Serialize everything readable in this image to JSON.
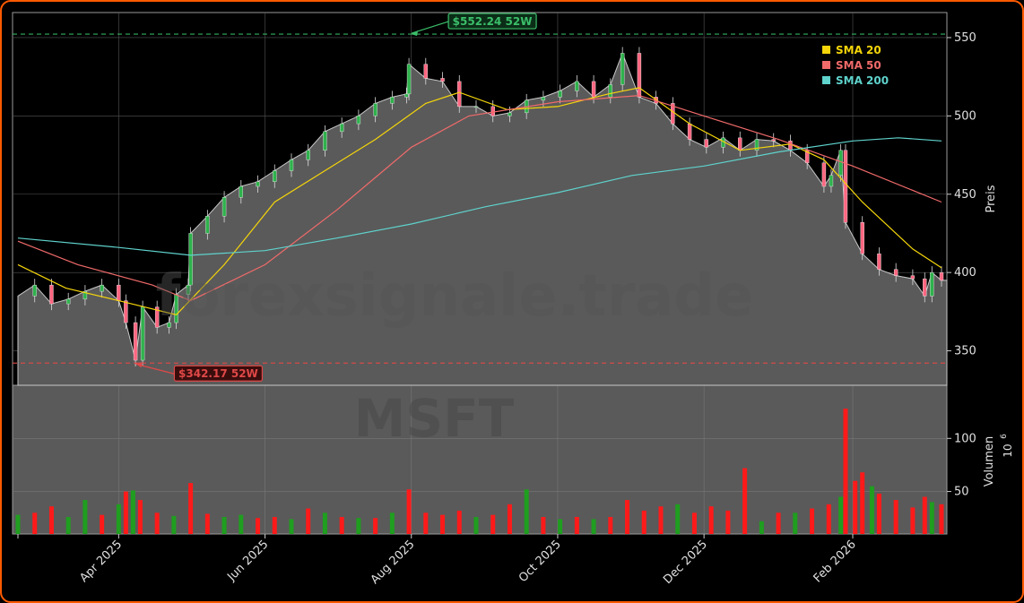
{
  "chart_data": {
    "type": "candlestick",
    "watermark": "forexsignale.trade",
    "watermark_symbol": "MSFT",
    "x_axis": {
      "type": "date",
      "range": [
        "2025-02-18",
        "2026-03-10"
      ],
      "tick_labels": [
        "Apr 2025",
        "Jun 2025",
        "Aug 2025",
        "Oct 2025",
        "Dec 2025",
        "Feb 2026"
      ],
      "tick_dates": [
        "2025-04-01",
        "2025-06-01",
        "2025-08-01",
        "2025-10-01",
        "2025-12-01",
        "2026-02-01"
      ]
    },
    "price_panel": {
      "ylabel": "Preis",
      "ylim": [
        328,
        566
      ],
      "yticks": [
        350,
        400,
        450,
        500,
        550
      ],
      "grid": true,
      "legend_position": "top-right",
      "legend": [
        {
          "name": "SMA 20",
          "color": "#f5d50a"
        },
        {
          "name": "SMA 50",
          "color": "#f06a6a"
        },
        {
          "name": "SMA 200",
          "color": "#5fd2cc"
        }
      ],
      "close_series": [
        [
          "2025-02-18",
          385
        ],
        [
          "2025-02-25",
          392
        ],
        [
          "2025-03-04",
          380
        ],
        [
          "2025-03-11",
          383
        ],
        [
          "2025-03-18",
          388
        ],
        [
          "2025-03-25",
          392
        ],
        [
          "2025-04-01",
          382
        ],
        [
          "2025-04-04",
          368
        ],
        [
          "2025-04-08",
          344
        ],
        [
          "2025-04-11",
          378
        ],
        [
          "2025-04-17",
          365
        ],
        [
          "2025-04-22",
          368
        ],
        [
          "2025-04-25",
          386
        ],
        [
          "2025-04-30",
          392
        ],
        [
          "2025-05-01",
          425
        ],
        [
          "2025-05-08",
          436
        ],
        [
          "2025-05-15",
          448
        ],
        [
          "2025-05-22",
          455
        ],
        [
          "2025-05-29",
          458
        ],
        [
          "2025-06-05",
          465
        ],
        [
          "2025-06-12",
          472
        ],
        [
          "2025-06-19",
          478
        ],
        [
          "2025-06-26",
          490
        ],
        [
          "2025-07-03",
          495
        ],
        [
          "2025-07-10",
          500
        ],
        [
          "2025-07-17",
          508
        ],
        [
          "2025-07-24",
          512
        ],
        [
          "2025-07-30",
          514
        ],
        [
          "2025-07-31",
          533
        ],
        [
          "2025-08-07",
          524
        ],
        [
          "2025-08-14",
          522
        ],
        [
          "2025-08-21",
          506
        ],
        [
          "2025-08-28",
          506
        ],
        [
          "2025-09-04",
          500
        ],
        [
          "2025-09-11",
          502
        ],
        [
          "2025-09-18",
          510
        ],
        [
          "2025-09-25",
          512
        ],
        [
          "2025-10-02",
          516
        ],
        [
          "2025-10-09",
          522
        ],
        [
          "2025-10-16",
          512
        ],
        [
          "2025-10-23",
          520
        ],
        [
          "2025-10-28",
          540
        ],
        [
          "2025-11-04",
          512
        ],
        [
          "2025-11-11",
          508
        ],
        [
          "2025-11-18",
          495
        ],
        [
          "2025-11-25",
          485
        ],
        [
          "2025-12-02",
          480
        ],
        [
          "2025-12-09",
          486
        ],
        [
          "2025-12-16",
          478
        ],
        [
          "2025-12-23",
          485
        ],
        [
          "2025-12-30",
          484
        ],
        [
          "2026-01-06",
          478
        ],
        [
          "2026-01-13",
          470
        ],
        [
          "2026-01-20",
          455
        ],
        [
          "2026-01-23",
          462
        ],
        [
          "2026-01-27",
          478
        ],
        [
          "2026-01-29",
          432
        ],
        [
          "2026-02-05",
          412
        ],
        [
          "2026-02-12",
          402
        ],
        [
          "2026-02-19",
          398
        ],
        [
          "2026-02-26",
          396
        ],
        [
          "2026-03-03",
          385
        ],
        [
          "2026-03-06",
          400
        ],
        [
          "2026-03-10",
          395
        ]
      ],
      "sma20": [
        [
          "2025-02-18",
          405
        ],
        [
          "2025-03-10",
          390
        ],
        [
          "2025-04-01",
          382
        ],
        [
          "2025-04-25",
          373
        ],
        [
          "2025-05-15",
          405
        ],
        [
          "2025-06-05",
          445
        ],
        [
          "2025-06-26",
          465
        ],
        [
          "2025-07-17",
          485
        ],
        [
          "2025-08-07",
          508
        ],
        [
          "2025-08-21",
          515
        ],
        [
          "2025-09-10",
          504
        ],
        [
          "2025-10-01",
          506
        ],
        [
          "2025-10-22",
          514
        ],
        [
          "2025-11-04",
          518
        ],
        [
          "2025-11-25",
          495
        ],
        [
          "2025-12-16",
          478
        ],
        [
          "2026-01-06",
          482
        ],
        [
          "2026-01-20",
          472
        ],
        [
          "2026-02-05",
          445
        ],
        [
          "2026-02-26",
          415
        ],
        [
          "2026-03-10",
          403
        ]
      ],
      "sma50": [
        [
          "2025-02-18",
          420
        ],
        [
          "2025-03-15",
          405
        ],
        [
          "2025-04-15",
          392
        ],
        [
          "2025-05-01",
          382
        ],
        [
          "2025-06-01",
          405
        ],
        [
          "2025-07-01",
          440
        ],
        [
          "2025-08-01",
          480
        ],
        [
          "2025-08-25",
          500
        ],
        [
          "2025-10-01",
          509
        ],
        [
          "2025-11-04",
          513
        ],
        [
          "2025-12-01",
          500
        ],
        [
          "2026-01-01",
          485
        ],
        [
          "2026-02-01",
          468
        ],
        [
          "2026-03-10",
          445
        ]
      ],
      "sma200": [
        [
          "2025-02-18",
          422
        ],
        [
          "2025-04-01",
          416
        ],
        [
          "2025-05-01",
          411
        ],
        [
          "2025-06-01",
          414
        ],
        [
          "2025-07-01",
          422
        ],
        [
          "2025-08-01",
          431
        ],
        [
          "2025-09-01",
          442
        ],
        [
          "2025-10-01",
          451
        ],
        [
          "2025-11-01",
          462
        ],
        [
          "2025-12-01",
          468
        ],
        [
          "2026-01-01",
          477
        ],
        [
          "2026-02-01",
          484
        ],
        [
          "2026-02-20",
          486
        ],
        [
          "2026-03-10",
          484
        ]
      ],
      "annotations": [
        {
          "label": "$552.24 52W",
          "value": 552.24,
          "date": "2025-07-31",
          "color": "#3bbf6a",
          "line_style": "dashed"
        },
        {
          "label": "$342.17 52W",
          "value": 342.17,
          "date": "2025-04-07",
          "color": "#e04848",
          "line_style": "dashed"
        }
      ]
    },
    "volume_panel": {
      "ylabel": "Volumen",
      "unit_label": "10",
      "unit_exponent": "6",
      "ylim": [
        10,
        150
      ],
      "yticks": [
        50,
        100
      ],
      "up_color": "#1f9e1f",
      "down_color": "#ff1a1a",
      "bars": [
        [
          "2025-02-18",
          28,
          "up"
        ],
        [
          "2025-02-25",
          30,
          "down"
        ],
        [
          "2025-03-04",
          36,
          "down"
        ],
        [
          "2025-03-11",
          26,
          "up"
        ],
        [
          "2025-03-18",
          42,
          "up"
        ],
        [
          "2025-03-25",
          28,
          "down"
        ],
        [
          "2025-04-01",
          38,
          "up"
        ],
        [
          "2025-04-04",
          50,
          "down"
        ],
        [
          "2025-04-07",
          51,
          "up"
        ],
        [
          "2025-04-10",
          42,
          "down"
        ],
        [
          "2025-04-17",
          30,
          "down"
        ],
        [
          "2025-04-24",
          27,
          "up"
        ],
        [
          "2025-05-01",
          58,
          "down"
        ],
        [
          "2025-05-08",
          29,
          "down"
        ],
        [
          "2025-05-15",
          26,
          "up"
        ],
        [
          "2025-05-22",
          28,
          "up"
        ],
        [
          "2025-05-29",
          25,
          "down"
        ],
        [
          "2025-06-05",
          26,
          "down"
        ],
        [
          "2025-06-12",
          24,
          "up"
        ],
        [
          "2025-06-19",
          34,
          "down"
        ],
        [
          "2025-06-26",
          30,
          "up"
        ],
        [
          "2025-07-03",
          26,
          "down"
        ],
        [
          "2025-07-10",
          25,
          "up"
        ],
        [
          "2025-07-17",
          25,
          "down"
        ],
        [
          "2025-07-24",
          30,
          "up"
        ],
        [
          "2025-07-31",
          52,
          "down"
        ],
        [
          "2025-08-07",
          30,
          "down"
        ],
        [
          "2025-08-14",
          28,
          "down"
        ],
        [
          "2025-08-21",
          32,
          "down"
        ],
        [
          "2025-08-28",
          26,
          "up"
        ],
        [
          "2025-09-04",
          28,
          "down"
        ],
        [
          "2025-09-11",
          38,
          "down"
        ],
        [
          "2025-09-18",
          52,
          "up"
        ],
        [
          "2025-09-25",
          26,
          "down"
        ],
        [
          "2025-10-02",
          24,
          "up"
        ],
        [
          "2025-10-09",
          26,
          "down"
        ],
        [
          "2025-10-16",
          24,
          "up"
        ],
        [
          "2025-10-23",
          26,
          "down"
        ],
        [
          "2025-10-30",
          42,
          "down"
        ],
        [
          "2025-11-06",
          32,
          "down"
        ],
        [
          "2025-11-13",
          36,
          "down"
        ],
        [
          "2025-11-20",
          38,
          "up"
        ],
        [
          "2025-11-27",
          30,
          "down"
        ],
        [
          "2025-12-04",
          36,
          "down"
        ],
        [
          "2025-12-11",
          32,
          "down"
        ],
        [
          "2025-12-18",
          72,
          "down"
        ],
        [
          "2025-12-25",
          22,
          "up"
        ],
        [
          "2026-01-01",
          30,
          "down"
        ],
        [
          "2026-01-08",
          30,
          "up"
        ],
        [
          "2026-01-15",
          34,
          "down"
        ],
        [
          "2026-01-22",
          38,
          "down"
        ],
        [
          "2026-01-27",
          45,
          "up"
        ],
        [
          "2026-01-29",
          128,
          "down"
        ],
        [
          "2026-02-02",
          60,
          "down"
        ],
        [
          "2026-02-05",
          68,
          "down"
        ],
        [
          "2026-02-09",
          55,
          "up"
        ],
        [
          "2026-02-12",
          48,
          "down"
        ],
        [
          "2026-02-19",
          42,
          "down"
        ],
        [
          "2026-02-26",
          35,
          "down"
        ],
        [
          "2026-03-03",
          45,
          "down"
        ],
        [
          "2026-03-06",
          40,
          "up"
        ],
        [
          "2026-03-10",
          38,
          "down"
        ]
      ]
    }
  }
}
